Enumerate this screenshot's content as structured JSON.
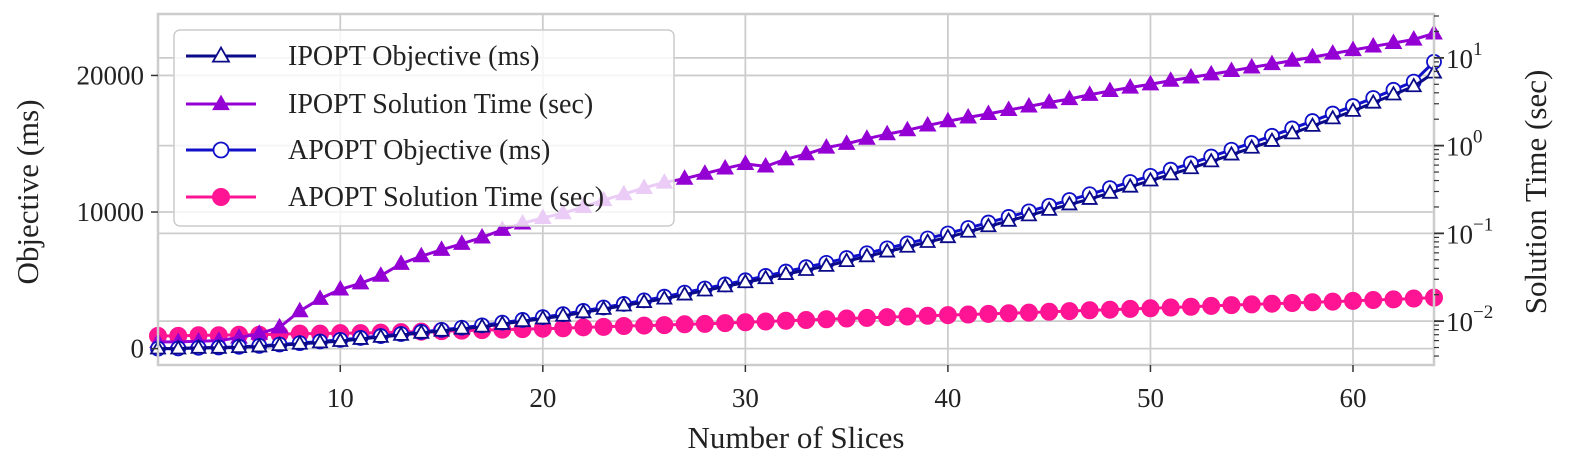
{
  "chart_data": {
    "type": "line",
    "xlabel": "Number of Slices",
    "ylabel_left": "Objective (ms)",
    "ylabel_right": "Solution Time (sec)",
    "x_ticks": [
      "10",
      "20",
      "30",
      "40",
      "50",
      "60"
    ],
    "y_left_ticks": [
      "0",
      "10000",
      "20000"
    ],
    "y_right_ticks": [
      {
        "base": "10",
        "exp": "−2"
      },
      {
        "base": "10",
        "exp": "−1"
      },
      {
        "base": "10",
        "exp": "0"
      },
      {
        "base": "10",
        "exp": "1"
      }
    ],
    "xlim": [
      1,
      64
    ],
    "ylim_left": [
      -1200,
      24500
    ],
    "ylim_right_log10": [
      -2.5,
      1.5
    ],
    "right_axis_scale": "log",
    "grid": true,
    "legend_position": "top-left",
    "colors": {
      "ipopt_objective": "#0b0b8a",
      "ipopt_time": "#9400d3",
      "apopt_objective": "#1010c8",
      "apopt_time": "#ff1493"
    },
    "x": [
      1,
      2,
      3,
      4,
      5,
      6,
      7,
      8,
      9,
      10,
      11,
      12,
      13,
      14,
      15,
      16,
      17,
      18,
      19,
      20,
      21,
      22,
      23,
      24,
      25,
      26,
      27,
      28,
      29,
      30,
      31,
      32,
      33,
      34,
      35,
      36,
      37,
      38,
      39,
      40,
      41,
      42,
      43,
      44,
      45,
      46,
      47,
      48,
      49,
      50,
      51,
      52,
      53,
      54,
      55,
      56,
      57,
      58,
      59,
      60,
      61,
      62,
      63,
      64
    ],
    "series": [
      {
        "name": "IPOPT Objective (ms)",
        "axis": "left",
        "marker": "triangle-open",
        "values": [
          0,
          0,
          50,
          50,
          100,
          150,
          250,
          350,
          450,
          550,
          700,
          850,
          1000,
          1150,
          1300,
          1450,
          1600,
          1800,
          2000,
          2200,
          2400,
          2650,
          2900,
          3150,
          3400,
          3650,
          3950,
          4250,
          4550,
          4850,
          5150,
          5450,
          5750,
          6050,
          6400,
          6750,
          7100,
          7450,
          7800,
          8150,
          8550,
          8950,
          9350,
          9750,
          10150,
          10550,
          10950,
          11400,
          11850,
          12300,
          12750,
          13200,
          13700,
          14200,
          14700,
          15200,
          15750,
          16300,
          16850,
          17400,
          18000,
          18600,
          19200,
          20200
        ]
      },
      {
        "name": "IPOPT Solution Time (sec)",
        "axis": "right",
        "marker": "triangle-filled",
        "values": [
          0.0058,
          0.0058,
          0.0059,
          0.006,
          0.0065,
          0.0072,
          0.0085,
          0.013,
          0.018,
          0.023,
          0.027,
          0.033,
          0.045,
          0.055,
          0.065,
          0.076,
          0.09,
          0.11,
          0.13,
          0.15,
          0.17,
          0.2,
          0.24,
          0.28,
          0.33,
          0.38,
          0.42,
          0.48,
          0.55,
          0.62,
          0.58,
          0.7,
          0.8,
          0.95,
          1.05,
          1.2,
          1.35,
          1.5,
          1.7,
          1.9,
          2.1,
          2.3,
          2.55,
          2.8,
          3.1,
          3.4,
          3.8,
          4.2,
          4.6,
          5.0,
          5.5,
          6.0,
          6.5,
          7.1,
          7.8,
          8.5,
          9.3,
          10.2,
          11.2,
          12.3,
          13.5,
          14.8,
          16.2,
          19.0
        ]
      },
      {
        "name": "APOPT Objective (ms)",
        "axis": "left",
        "marker": "circle-open",
        "values": [
          0,
          10,
          60,
          80,
          130,
          200,
          300,
          400,
          520,
          640,
          780,
          920,
          1070,
          1220,
          1370,
          1530,
          1700,
          1900,
          2100,
          2300,
          2520,
          2760,
          3010,
          3270,
          3530,
          3800,
          4100,
          4400,
          4700,
          5000,
          5320,
          5640,
          5960,
          6280,
          6630,
          6980,
          7340,
          7700,
          8060,
          8430,
          8830,
          9230,
          9640,
          10050,
          10460,
          10880,
          11300,
          11750,
          12200,
          12650,
          13100,
          13560,
          14060,
          14560,
          15070,
          15580,
          16120,
          16660,
          17210,
          17760,
          18350,
          18950,
          19550,
          21000
        ]
      },
      {
        "name": "APOPT Solution Time (sec)",
        "axis": "right",
        "marker": "circle-filled",
        "values": [
          0.0068,
          0.0068,
          0.0069,
          0.0069,
          0.007,
          0.007,
          0.0071,
          0.0072,
          0.0072,
          0.0073,
          0.0073,
          0.0074,
          0.0075,
          0.0076,
          0.0077,
          0.0078,
          0.0079,
          0.008,
          0.0081,
          0.0082,
          0.0083,
          0.0085,
          0.0086,
          0.0088,
          0.0089,
          0.009,
          0.0092,
          0.0093,
          0.0095,
          0.0097,
          0.0099,
          0.0101,
          0.0103,
          0.0105,
          0.0107,
          0.0109,
          0.0111,
          0.0113,
          0.0115,
          0.0117,
          0.0119,
          0.0121,
          0.0123,
          0.0125,
          0.0128,
          0.013,
          0.0133,
          0.0135,
          0.0138,
          0.014,
          0.0143,
          0.0146,
          0.0149,
          0.0152,
          0.0155,
          0.0158,
          0.0161,
          0.0164,
          0.0167,
          0.017,
          0.0174,
          0.0177,
          0.0181,
          0.0185
        ]
      }
    ]
  }
}
